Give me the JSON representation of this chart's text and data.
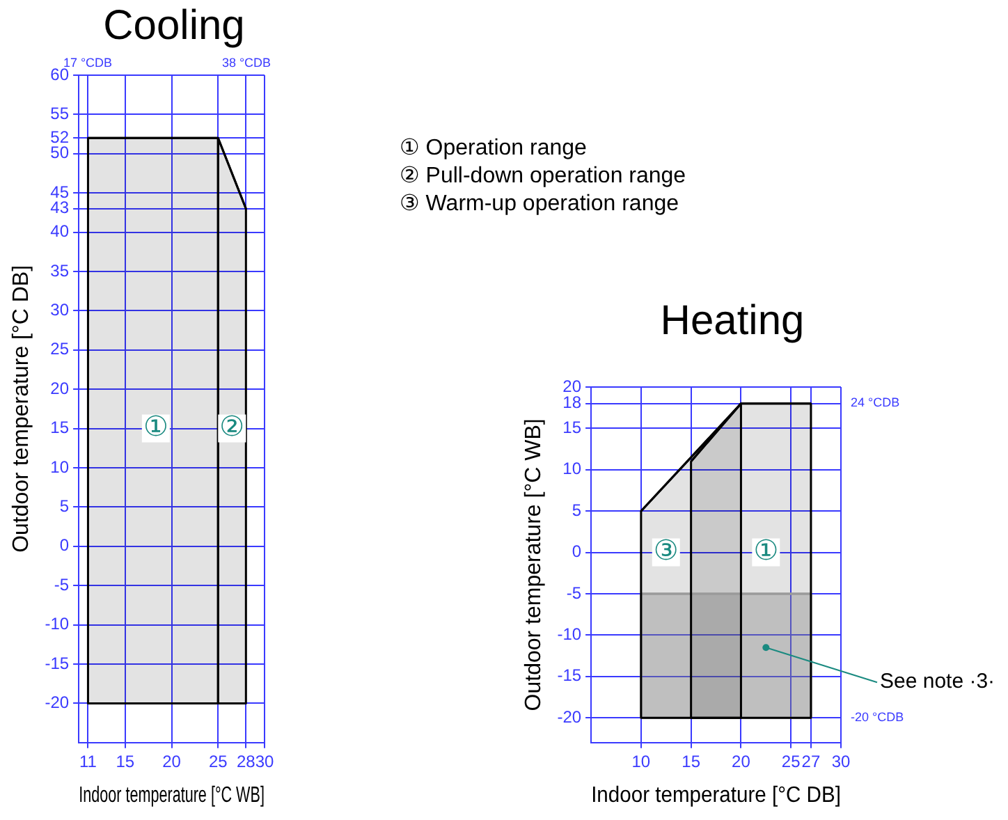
{
  "chart_data": [
    {
      "type": "line",
      "title": "Cooling",
      "xlabel": "Indoor temperature [°C WB]",
      "ylabel": "Outdoor temperature [°C DB]",
      "xlim": [
        10,
        30
      ],
      "xticks": [
        11,
        15,
        20,
        25,
        28,
        30
      ],
      "ylim": [
        -25,
        60
      ],
      "yticks": [
        -20,
        -15,
        -10,
        -5,
        0,
        5,
        10,
        15,
        20,
        25,
        30,
        35,
        40,
        43,
        45,
        50,
        52,
        55,
        60
      ],
      "grid": true,
      "legend": false,
      "marker": "none",
      "line_style": "solid",
      "series": [
        {
          "type": "line",
          "color": "#000000",
          "x": [
            11,
            25
          ],
          "values": [
            52,
            52
          ],
          "lower": [
            -20,
            -20
          ],
          "upper": [
            52,
            52
          ]
        },
        {
          "type": "line",
          "color": "#000000",
          "x": [
            25,
            28
          ],
          "values": [
            52,
            43
          ],
          "lower": [
            -20,
            -20
          ],
          "upper": [
            52,
            43
          ]
        }
      ],
      "annotations": [
        "17 °CDB",
        "38 °CDB",
        "① Operation range",
        "② Pull-down operation range",
        "③ Warm-up operation range",
        {
          "text": "①",
          "x": 18.3,
          "y": 15
        },
        {
          "text": "②",
          "x": 26.5,
          "y": 15
        }
      ]
    },
    {
      "type": "line",
      "title": "Heating",
      "xlabel": "Indoor temperature [°C DB]",
      "ylabel": "Outdoor temperature [°C WB]",
      "xlim": [
        5,
        30
      ],
      "xticks": [
        10,
        15,
        20,
        25,
        27,
        30
      ],
      "ylim": [
        -23,
        20
      ],
      "yticks": [
        -20,
        -15,
        -10,
        -5,
        0,
        5,
        10,
        15,
        18,
        20
      ],
      "grid": true,
      "legend": false,
      "marker": "none",
      "line_style": "solid",
      "series": [
        {
          "type": "line",
          "color": "#9a9a9a",
          "x": [
            10,
            27
          ],
          "values": [
            -5,
            -5
          ],
          "lower": [
            -20,
            -20
          ],
          "upper": [
            -5,
            -5
          ]
        },
        {
          "type": "line",
          "color": "#000000",
          "x": [
            15,
            20,
            27
          ],
          "values": [
            11,
            18,
            18
          ],
          "lower": [
            -20,
            -20,
            -20
          ],
          "upper": [
            11,
            18,
            18
          ]
        },
        {
          "type": "line",
          "color": "#000000",
          "x": [
            10,
            20
          ],
          "values": [
            5,
            18
          ],
          "lower": [
            -20,
            -20
          ],
          "upper": [
            5,
            18
          ]
        }
      ],
      "annotations": [
        "24 °CDB",
        "-20 °CDB",
        {
          "text": "③",
          "x": 12.5,
          "y": 0
        },
        {
          "text": "①",
          "x": 22.5,
          "y": 0
        },
        {
          "text": "See note ·3·",
          "x": 22.5,
          "y": -11.5
        }
      ]
    }
  ]
}
